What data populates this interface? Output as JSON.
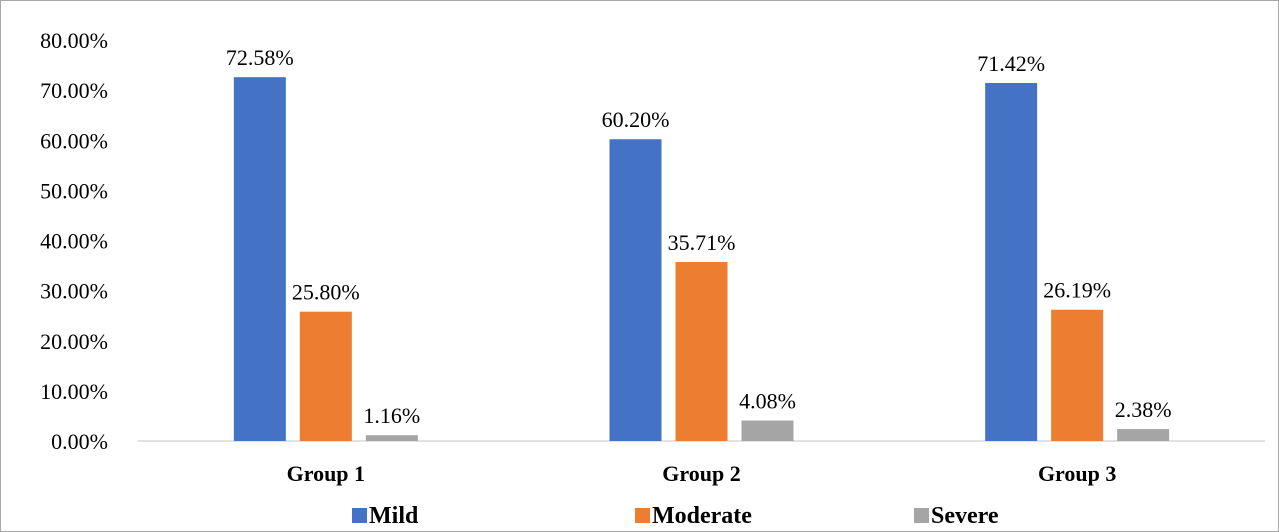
{
  "chart_data": {
    "type": "bar",
    "categories": [
      "Group 1",
      "Group 2",
      "Group 3"
    ],
    "series": [
      {
        "name": "Mild",
        "values": [
          72.58,
          60.2,
          71.42
        ],
        "color": "#4472c4",
        "labels": [
          "72.58%",
          "60.20%",
          "71.42%"
        ]
      },
      {
        "name": "Moderate",
        "values": [
          25.8,
          35.71,
          26.19
        ],
        "color": "#ed7d31",
        "labels": [
          "25.80%",
          "35.71%",
          "26.19%"
        ]
      },
      {
        "name": "Severe",
        "values": [
          1.16,
          4.08,
          2.38
        ],
        "color": "#a5a5a5",
        "labels": [
          "1.16%",
          "4.08%",
          "2.38%"
        ]
      }
    ],
    "ylim": [
      0,
      80
    ],
    "yticks": [
      "0.00%",
      "10.00%",
      "20.00%",
      "30.00%",
      "40.00%",
      "50.00%",
      "60.00%",
      "70.00%",
      "80.00%"
    ],
    "title": "",
    "xlabel": "",
    "ylabel": "",
    "grid": false,
    "legend_position": "bottom"
  }
}
